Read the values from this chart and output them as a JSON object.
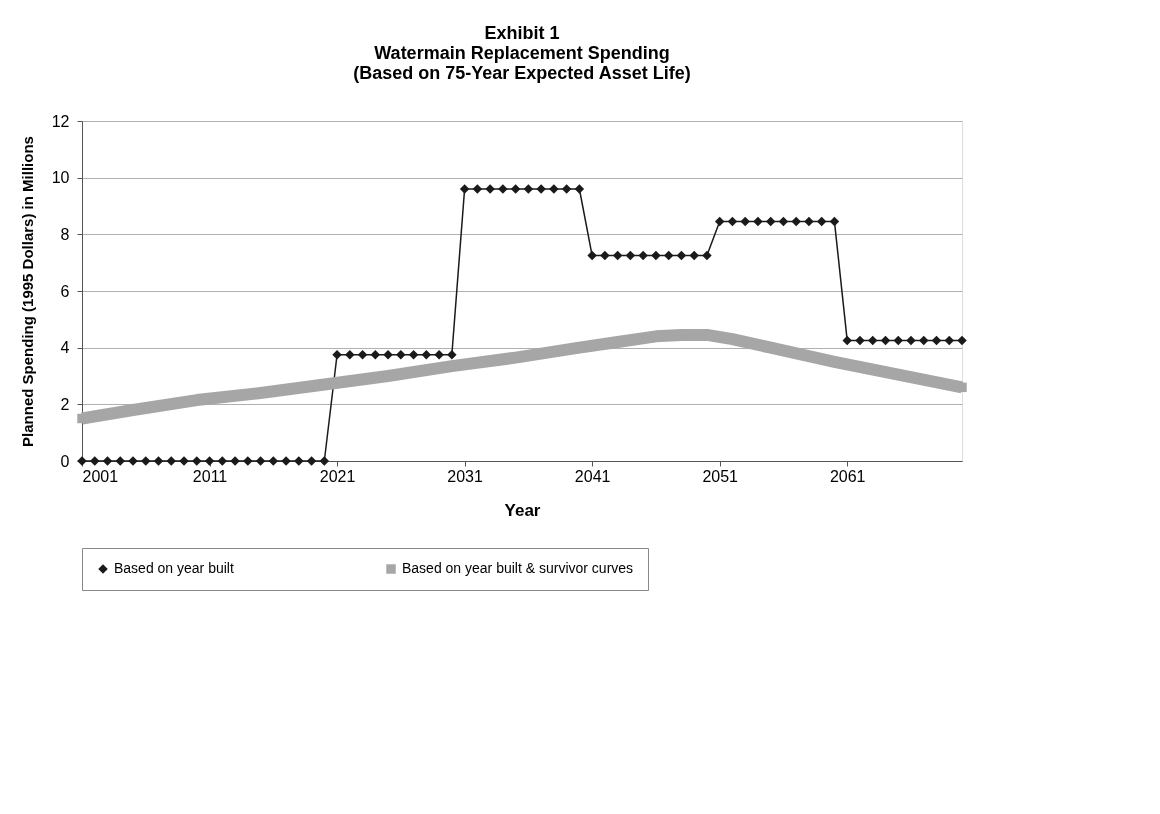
{
  "chart_data": {
    "type": "line",
    "title": [
      "Exhibit 1",
      "Watermain Replacement Spending",
      "(Based on 75-Year Expected Asset Life)"
    ],
    "xlabel": "Year",
    "ylabel": "Planned Spending (1995 Dollars) in Millions",
    "xlim": [
      2001,
      2070
    ],
    "xticks": [
      2001,
      2011,
      2021,
      2031,
      2041,
      2051,
      2061
    ],
    "ylim": [
      0,
      12
    ],
    "yticks": [
      0,
      2,
      4,
      6,
      8,
      10,
      12
    ],
    "grid": "y",
    "legend": "bottom",
    "series": [
      {
        "name": "Based on year built",
        "color": "#1a1a1a",
        "marker": "diamond",
        "x": [
          2001,
          2002,
          2003,
          2004,
          2005,
          2006,
          2007,
          2008,
          2009,
          2010,
          2011,
          2012,
          2013,
          2014,
          2015,
          2016,
          2017,
          2018,
          2019,
          2020,
          2021,
          2022,
          2023,
          2024,
          2025,
          2026,
          2027,
          2028,
          2029,
          2030,
          2031,
          2032,
          2033,
          2034,
          2035,
          2036,
          2037,
          2038,
          2039,
          2040,
          2041,
          2042,
          2043,
          2044,
          2045,
          2046,
          2047,
          2048,
          2049,
          2050,
          2051,
          2052,
          2053,
          2054,
          2055,
          2056,
          2057,
          2058,
          2059,
          2060,
          2061,
          2062,
          2063,
          2064,
          2065,
          2066,
          2067,
          2068,
          2069,
          2070
        ],
        "values": [
          0,
          0,
          0,
          0,
          0,
          0,
          0,
          0,
          0,
          0,
          0,
          0,
          0,
          0,
          0,
          0,
          0,
          0,
          0,
          0,
          3.75,
          3.75,
          3.75,
          3.75,
          3.75,
          3.75,
          3.75,
          3.75,
          3.75,
          3.75,
          9.6,
          9.6,
          9.6,
          9.6,
          9.6,
          9.6,
          9.6,
          9.6,
          9.6,
          9.6,
          7.25,
          7.25,
          7.25,
          7.25,
          7.25,
          7.25,
          7.25,
          7.25,
          7.25,
          7.25,
          8.45,
          8.45,
          8.45,
          8.45,
          8.45,
          8.45,
          8.45,
          8.45,
          8.45,
          8.45,
          4.25,
          4.25,
          4.25,
          4.25,
          4.25,
          4.25,
          4.25,
          4.25,
          4.25,
          4.25
        ]
      },
      {
        "name": "Based on year built & survivor curves",
        "color": "#a6a6a6",
        "marker": "square",
        "x": [
          2001,
          2005,
          2010,
          2015,
          2020,
          2025,
          2030,
          2035,
          2040,
          2043,
          2046,
          2048,
          2050,
          2052,
          2055,
          2060,
          2065,
          2070
        ],
        "values": [
          1.5,
          1.8,
          2.15,
          2.4,
          2.7,
          3.0,
          3.35,
          3.65,
          4.0,
          4.2,
          4.4,
          4.45,
          4.45,
          4.3,
          4.0,
          3.5,
          3.05,
          2.6
        ]
      }
    ]
  }
}
